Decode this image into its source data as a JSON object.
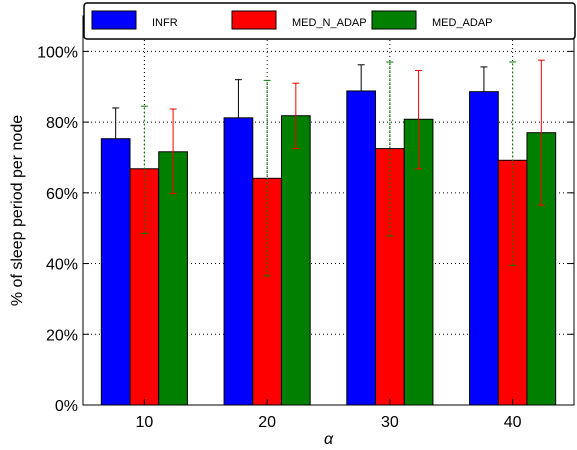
{
  "chart_data": {
    "type": "bar",
    "categories": [
      "10",
      "20",
      "30",
      "40"
    ],
    "series": [
      {
        "name": "INFR",
        "color": "#0000ff",
        "values": [
          75.3,
          81.2,
          88.8,
          88.6
        ],
        "err_low": [
          75.3,
          81.2,
          88.8,
          88.6
        ],
        "err_high": [
          84.0,
          92.0,
          96.2,
          95.6
        ],
        "err_style": "solid"
      },
      {
        "name": "MED_N_ADAP",
        "color": "#ff0000",
        "values": [
          66.8,
          64.1,
          72.5,
          69.2
        ],
        "err_low": [
          48.5,
          36.5,
          47.8,
          39.5
        ],
        "err_high": [
          84.5,
          91.8,
          97.0,
          97.0
        ],
        "err_style": "dotted",
        "err_color": "#007f00"
      },
      {
        "name": "MED_ADAP",
        "color": "#007f00",
        "values": [
          71.6,
          81.8,
          80.8,
          77.0
        ],
        "err_low": [
          59.8,
          72.5,
          66.8,
          56.5
        ],
        "err_high": [
          83.7,
          91.0,
          94.6,
          97.5
        ],
        "err_style": "solid",
        "err_color": "#ff0000"
      }
    ],
    "xlabel": "α",
    "ylabel": "% of sleep period per node",
    "ylim": [
      0,
      110
    ],
    "yticks": [
      "0%",
      "20%",
      "40%",
      "60%",
      "80%",
      "100%"
    ],
    "ytick_values": [
      0,
      20,
      40,
      60,
      80,
      100
    ],
    "grid": true,
    "legend_position": "top"
  }
}
